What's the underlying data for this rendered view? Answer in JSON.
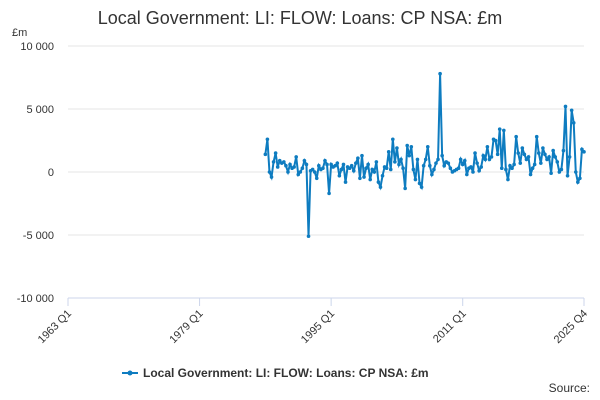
{
  "chart_data": {
    "type": "line",
    "title": "Local Government: LI: FLOW: Loans: CP NSA: £m",
    "y_unit": "£m",
    "source": "Source:",
    "xlim": [
      1963,
      2025.75
    ],
    "xticks": [
      {
        "value": 1963,
        "label": "1963 Q1"
      },
      {
        "value": 1979,
        "label": "1979 Q1"
      },
      {
        "value": 1995,
        "label": "1995 Q1"
      },
      {
        "value": 2011,
        "label": "2011 Q1"
      },
      {
        "value": 2025.75,
        "label": "2025 Q4"
      }
    ],
    "ylim": [
      -10000,
      10000
    ],
    "yticks": [
      {
        "value": 10000,
        "label": "10 000"
      },
      {
        "value": 5000,
        "label": "5 000"
      },
      0,
      {
        "value": -5000,
        "label": "-5 000"
      },
      {
        "value": -10000,
        "label": "-10 000"
      }
    ],
    "grid": true,
    "legend": "bottom",
    "x": [
      1987,
      1987.25,
      1987.5,
      1987.75,
      1988,
      1988.25,
      1988.5,
      1988.75,
      1989,
      1989.25,
      1989.5,
      1989.75,
      1990,
      1990.25,
      1990.5,
      1990.75,
      1991,
      1991.25,
      1991.5,
      1991.75,
      1992,
      1992.25,
      1992.5,
      1992.75,
      1993,
      1993.25,
      1993.5,
      1993.75,
      1994,
      1994.25,
      1994.5,
      1994.75,
      1995,
      1995.25,
      1995.5,
      1995.75,
      1996,
      1996.25,
      1996.5,
      1996.75,
      1997,
      1997.25,
      1997.5,
      1997.75,
      1998,
      1998.25,
      1998.5,
      1998.75,
      1999,
      1999.25,
      1999.5,
      1999.75,
      2000,
      2000.25,
      2000.5,
      2000.75,
      2001,
      2001.25,
      2001.5,
      2001.75,
      2002,
      2002.25,
      2002.5,
      2002.75,
      2003,
      2003.25,
      2003.5,
      2003.75,
      2004,
      2004.25,
      2004.5,
      2004.75,
      2005,
      2005.25,
      2005.5,
      2005.75,
      2006,
      2006.25,
      2006.5,
      2006.75,
      2007,
      2007.25,
      2007.5,
      2007.75,
      2008,
      2008.25,
      2008.5,
      2008.75,
      2009,
      2009.25,
      2009.5,
      2009.75,
      2010,
      2010.25,
      2010.5,
      2010.75,
      2011,
      2011.25,
      2011.5,
      2011.75,
      2012,
      2012.25,
      2012.5,
      2012.75,
      2013,
      2013.25,
      2013.5,
      2013.75,
      2014,
      2014.25,
      2014.5,
      2014.75,
      2015,
      2015.25,
      2015.5,
      2015.75,
      2016,
      2016.25,
      2016.5,
      2016.75,
      2017,
      2017.25,
      2017.5,
      2017.75,
      2018,
      2018.25,
      2018.5,
      2018.75,
      2019,
      2019.25,
      2019.5,
      2019.75,
      2020,
      2020.25,
      2020.5,
      2020.75,
      2021,
      2021.25,
      2021.5,
      2021.75,
      2022,
      2022.25,
      2022.5,
      2022.75,
      2023,
      2023.25,
      2023.5,
      2023.75,
      2024,
      2024.25,
      2024.5,
      2024.75,
      2025,
      2025.25,
      2025.5,
      2025.75
    ],
    "series": [
      {
        "name": "Local Government: LI: FLOW: Loans: CP NSA: £m",
        "color": "#0e7cc0",
        "values": [
          1400,
          2600,
          0,
          -400,
          800,
          1500,
          400,
          900,
          700,
          800,
          500,
          0,
          600,
          300,
          400,
          1200,
          -200,
          0,
          300,
          900,
          600,
          -5100,
          100,
          200,
          0,
          -500,
          500,
          200,
          300,
          900,
          600,
          -1700,
          600,
          400,
          500,
          700,
          -300,
          200,
          600,
          -800,
          400,
          300,
          500,
          100,
          700,
          1100,
          -500,
          1300,
          -400,
          300,
          600,
          -600,
          200,
          0,
          800,
          -800,
          -1200,
          -300,
          400,
          300,
          1600,
          200,
          2600,
          800,
          1900,
          600,
          1000,
          300,
          -1300,
          2100,
          1300,
          2000,
          200,
          -600,
          1000,
          -900,
          -1200,
          500,
          1000,
          2000,
          500,
          -200,
          200,
          700,
          1000,
          7800,
          1300,
          500,
          800,
          700,
          300,
          0,
          100,
          200,
          300,
          1000,
          600,
          900,
          -200,
          300,
          400,
          0,
          1500,
          700,
          100,
          400,
          1300,
          1000,
          2000,
          1000,
          1200,
          2600,
          2500,
          1400,
          3400,
          300,
          3300,
          200,
          -600,
          500,
          300,
          600,
          2800,
          1500,
          700,
          1900,
          1400,
          1000,
          1200,
          -200,
          300,
          600,
          2800,
          1500,
          700,
          1900,
          1400,
          1000,
          1200,
          -100,
          1700,
          1200,
          800,
          0,
          200,
          1700,
          5200,
          -300,
          1200,
          4900,
          3900,
          0,
          -800,
          -500,
          1800,
          1600
        ]
      }
    ]
  }
}
